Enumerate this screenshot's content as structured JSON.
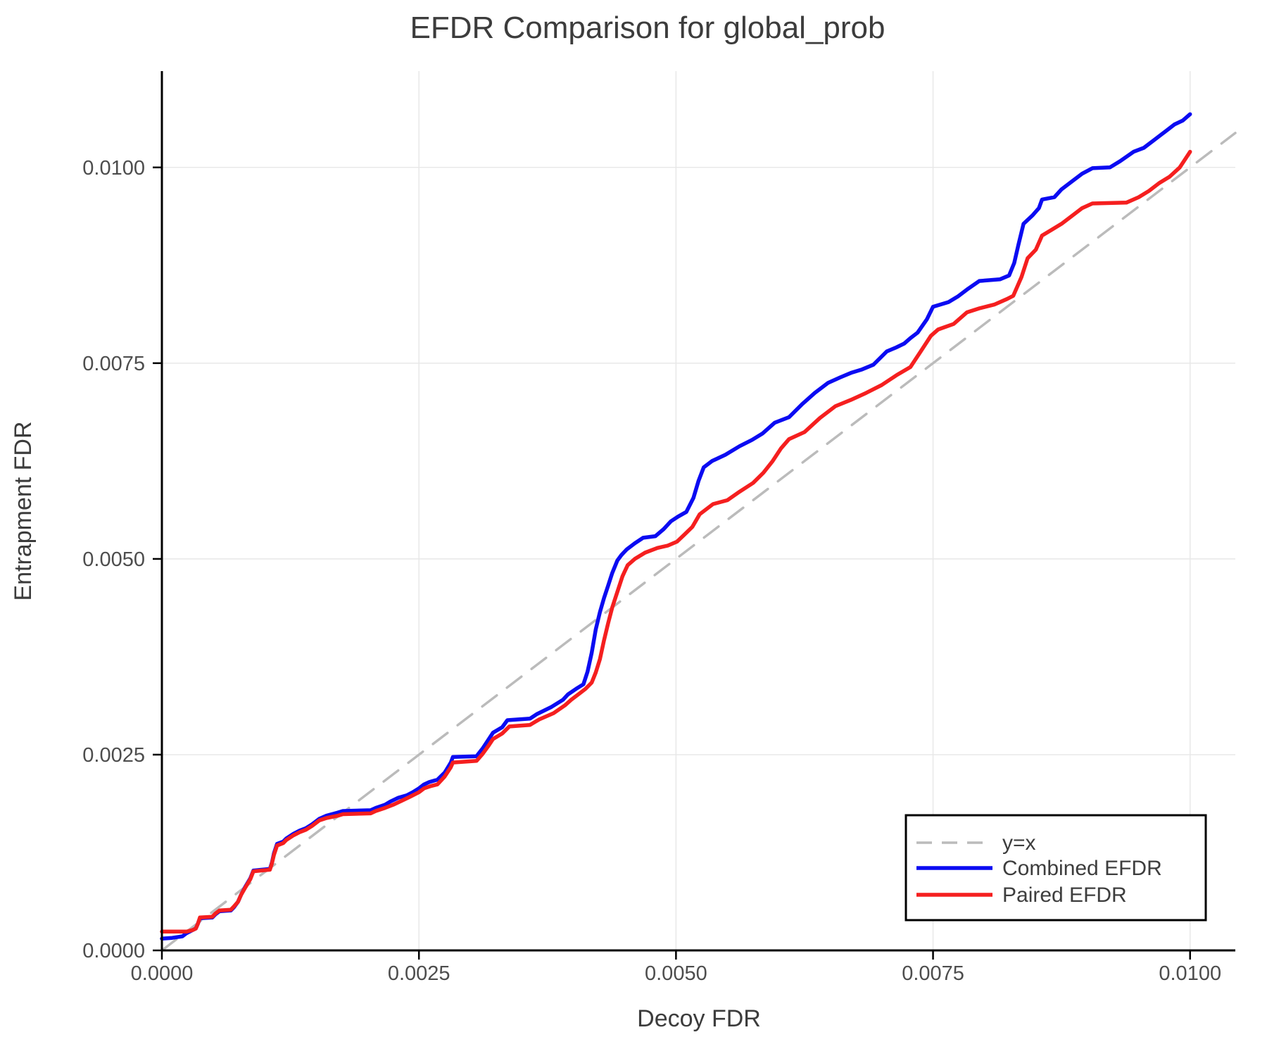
{
  "figure": {
    "title": "EFDR Comparison for global_prob",
    "background_color": "#ffffff"
  },
  "colors": {
    "title": "#3c3c3c",
    "axis_labels": "#3c3c3c",
    "tick_labels": "#4d4d4d",
    "spines": "#000000",
    "grid": "#e8e8e8",
    "legend_border": "#000000",
    "legend_background": "#ffffff",
    "diagonal": "#bbbbbb",
    "combined": "#0b0bf2",
    "paired": "#f51f1f"
  },
  "chart_data": {
    "type": "line",
    "title": "EFDR Comparison for global_prob",
    "xlabel": "Decoy FDR",
    "ylabel": "Entrapment FDR",
    "xlim": [
      0,
      0.01044
    ],
    "ylim": [
      0,
      0.01123
    ],
    "grid": true,
    "legend_position": "bottom-right",
    "x_ticks": [
      0.0,
      0.0025,
      0.005,
      0.0075,
      0.01
    ],
    "x_tick_labels": [
      "0.0000",
      "0.0025",
      "0.0050",
      "0.0075",
      "0.0100"
    ],
    "y_ticks": [
      0.0,
      0.0025,
      0.005,
      0.0075,
      0.01
    ],
    "y_tick_labels": [
      "0.0000",
      "0.0025",
      "0.0050",
      "0.0075",
      "0.0100"
    ],
    "series": [
      {
        "name": "y=x",
        "color": "#bbbbbb",
        "style": "dashed",
        "width": 3.5,
        "points": [
          [
            0,
            0
          ],
          [
            0.01044,
            0.01044
          ]
        ]
      },
      {
        "name": "Combined EFDR",
        "color": "#0b0bf2",
        "style": "solid",
        "width": 5.5,
        "points": [
          [
            0.0,
            0.00015
          ],
          [
            0.0001,
            0.00016
          ],
          [
            0.0002,
            0.00018
          ],
          [
            0.00024,
            0.00022
          ],
          [
            0.0003,
            0.00026
          ],
          [
            0.00033,
            0.00028
          ],
          [
            0.00035,
            0.00034
          ],
          [
            0.00037,
            0.00041
          ],
          [
            0.00049,
            0.00042
          ],
          [
            0.00052,
            0.00046
          ],
          [
            0.00056,
            0.0005
          ],
          [
            0.00067,
            0.00051
          ],
          [
            0.0007,
            0.00055
          ],
          [
            0.00074,
            0.00062
          ],
          [
            0.00077,
            0.00071
          ],
          [
            0.00081,
            0.00081
          ],
          [
            0.00086,
            0.00092
          ],
          [
            0.00089,
            0.00102
          ],
          [
            0.00105,
            0.00104
          ],
          [
            0.00107,
            0.00112
          ],
          [
            0.00109,
            0.00124
          ],
          [
            0.00112,
            0.00136
          ],
          [
            0.00118,
            0.00139
          ],
          [
            0.00121,
            0.00143
          ],
          [
            0.00128,
            0.00149
          ],
          [
            0.00134,
            0.00153
          ],
          [
            0.0014,
            0.00156
          ],
          [
            0.00146,
            0.00161
          ],
          [
            0.00153,
            0.00168
          ],
          [
            0.0016,
            0.00172
          ],
          [
            0.00171,
            0.00176
          ],
          [
            0.00176,
            0.00178
          ],
          [
            0.00203,
            0.00179
          ],
          [
            0.00208,
            0.00182
          ],
          [
            0.00217,
            0.00186
          ],
          [
            0.00222,
            0.0019
          ],
          [
            0.0023,
            0.00195
          ],
          [
            0.00238,
            0.00198
          ],
          [
            0.00244,
            0.00202
          ],
          [
            0.0025,
            0.00207
          ],
          [
            0.00255,
            0.00212
          ],
          [
            0.0026,
            0.00215
          ],
          [
            0.00268,
            0.00218
          ],
          [
            0.00275,
            0.00227
          ],
          [
            0.00281,
            0.0024
          ],
          [
            0.00283,
            0.00247
          ],
          [
            0.00306,
            0.00248
          ],
          [
            0.00312,
            0.00258
          ],
          [
            0.00318,
            0.0027
          ],
          [
            0.00322,
            0.00278
          ],
          [
            0.00331,
            0.00285
          ],
          [
            0.00336,
            0.00294
          ],
          [
            0.00358,
            0.00296
          ],
          [
            0.00365,
            0.00302
          ],
          [
            0.00379,
            0.00311
          ],
          [
            0.0039,
            0.0032
          ],
          [
            0.00395,
            0.00327
          ],
          [
            0.00404,
            0.00335
          ],
          [
            0.0041,
            0.0034
          ],
          [
            0.00414,
            0.00356
          ],
          [
            0.00418,
            0.0038
          ],
          [
            0.00422,
            0.0041
          ],
          [
            0.00426,
            0.00432
          ],
          [
            0.0043,
            0.0045
          ],
          [
            0.00434,
            0.00466
          ],
          [
            0.00438,
            0.00482
          ],
          [
            0.00443,
            0.00498
          ],
          [
            0.00447,
            0.00505
          ],
          [
            0.00452,
            0.00512
          ],
          [
            0.0046,
            0.0052
          ],
          [
            0.00468,
            0.00527
          ],
          [
            0.0048,
            0.00529
          ],
          [
            0.00488,
            0.00538
          ],
          [
            0.00495,
            0.00548
          ],
          [
            0.00502,
            0.00554
          ],
          [
            0.0051,
            0.0056
          ],
          [
            0.00517,
            0.00578
          ],
          [
            0.00522,
            0.006
          ],
          [
            0.00527,
            0.00617
          ],
          [
            0.00535,
            0.00625
          ],
          [
            0.00548,
            0.00633
          ],
          [
            0.00562,
            0.00644
          ],
          [
            0.00574,
            0.00652
          ],
          [
            0.00584,
            0.0066
          ],
          [
            0.00596,
            0.00674
          ],
          [
            0.0061,
            0.00681
          ],
          [
            0.00623,
            0.00698
          ],
          [
            0.00635,
            0.00712
          ],
          [
            0.00648,
            0.00725
          ],
          [
            0.0066,
            0.00732
          ],
          [
            0.00671,
            0.00738
          ],
          [
            0.00681,
            0.00742
          ],
          [
            0.00692,
            0.00748
          ],
          [
            0.00705,
            0.00765
          ],
          [
            0.00714,
            0.0077
          ],
          [
            0.00722,
            0.00775
          ],
          [
            0.00728,
            0.00782
          ],
          [
            0.00735,
            0.00789
          ],
          [
            0.00744,
            0.00806
          ],
          [
            0.0075,
            0.00822
          ],
          [
            0.00765,
            0.00828
          ],
          [
            0.00774,
            0.00835
          ],
          [
            0.00783,
            0.00844
          ],
          [
            0.00795,
            0.00855
          ],
          [
            0.00815,
            0.00857
          ],
          [
            0.00824,
            0.00862
          ],
          [
            0.00829,
            0.00878
          ],
          [
            0.00833,
            0.00901
          ],
          [
            0.00838,
            0.00928
          ],
          [
            0.00847,
            0.00939
          ],
          [
            0.00853,
            0.00948
          ],
          [
            0.00856,
            0.00959
          ],
          [
            0.00868,
            0.00962
          ],
          [
            0.00875,
            0.00972
          ],
          [
            0.00885,
            0.00982
          ],
          [
            0.00895,
            0.00992
          ],
          [
            0.00905,
            0.00999
          ],
          [
            0.00922,
            0.01
          ],
          [
            0.00932,
            0.01008
          ],
          [
            0.00945,
            0.0102
          ],
          [
            0.00955,
            0.01025
          ],
          [
            0.00965,
            0.01035
          ],
          [
            0.00975,
            0.01045
          ],
          [
            0.00985,
            0.01055
          ],
          [
            0.00993,
            0.0106
          ],
          [
            0.01,
            0.01068
          ]
        ]
      },
      {
        "name": "Paired EFDR",
        "color": "#f51f1f",
        "style": "solid",
        "width": 5.5,
        "points": [
          [
            0.0,
            0.00024
          ],
          [
            0.0002,
            0.00024
          ],
          [
            0.00024,
            0.00024
          ],
          [
            0.0003,
            0.00026
          ],
          [
            0.00033,
            0.00028
          ],
          [
            0.00035,
            0.00034
          ],
          [
            0.00037,
            0.00042
          ],
          [
            0.00049,
            0.00043
          ],
          [
            0.00052,
            0.00047
          ],
          [
            0.00056,
            0.00051
          ],
          [
            0.00067,
            0.00052
          ],
          [
            0.0007,
            0.00056
          ],
          [
            0.00074,
            0.00062
          ],
          [
            0.00077,
            0.00071
          ],
          [
            0.00081,
            0.0008
          ],
          [
            0.00086,
            0.00091
          ],
          [
            0.00089,
            0.00101
          ],
          [
            0.00105,
            0.00103
          ],
          [
            0.00107,
            0.00111
          ],
          [
            0.00109,
            0.00122
          ],
          [
            0.00112,
            0.00134
          ],
          [
            0.00118,
            0.00137
          ],
          [
            0.00121,
            0.00141
          ],
          [
            0.00128,
            0.00147
          ],
          [
            0.00134,
            0.00151
          ],
          [
            0.0014,
            0.00154
          ],
          [
            0.00146,
            0.00159
          ],
          [
            0.00153,
            0.00166
          ],
          [
            0.0016,
            0.00169
          ],
          [
            0.00171,
            0.00172
          ],
          [
            0.00176,
            0.00174
          ],
          [
            0.00203,
            0.00175
          ],
          [
            0.00208,
            0.00178
          ],
          [
            0.00217,
            0.00182
          ],
          [
            0.00225,
            0.00186
          ],
          [
            0.00233,
            0.00191
          ],
          [
            0.00241,
            0.00196
          ],
          [
            0.0025,
            0.00202
          ],
          [
            0.00255,
            0.00207
          ],
          [
            0.00262,
            0.0021
          ],
          [
            0.00268,
            0.00212
          ],
          [
            0.00275,
            0.00222
          ],
          [
            0.00281,
            0.00234
          ],
          [
            0.00283,
            0.0024
          ],
          [
            0.00306,
            0.00242
          ],
          [
            0.00312,
            0.00251
          ],
          [
            0.00318,
            0.00262
          ],
          [
            0.00322,
            0.0027
          ],
          [
            0.00331,
            0.00277
          ],
          [
            0.00338,
            0.00286
          ],
          [
            0.00358,
            0.00288
          ],
          [
            0.00367,
            0.00295
          ],
          [
            0.00381,
            0.00303
          ],
          [
            0.00392,
            0.00313
          ],
          [
            0.00398,
            0.0032
          ],
          [
            0.00406,
            0.00328
          ],
          [
            0.00412,
            0.00334
          ],
          [
            0.00418,
            0.00342
          ],
          [
            0.00422,
            0.00355
          ],
          [
            0.00426,
            0.00372
          ],
          [
            0.0043,
            0.00396
          ],
          [
            0.00434,
            0.00418
          ],
          [
            0.00438,
            0.00438
          ],
          [
            0.00443,
            0.00458
          ],
          [
            0.00448,
            0.00478
          ],
          [
            0.00453,
            0.00492
          ],
          [
            0.0046,
            0.005
          ],
          [
            0.0047,
            0.00508
          ],
          [
            0.00482,
            0.00514
          ],
          [
            0.00492,
            0.00517
          ],
          [
            0.00501,
            0.00522
          ],
          [
            0.00509,
            0.00532
          ],
          [
            0.00516,
            0.00541
          ],
          [
            0.00523,
            0.00557
          ],
          [
            0.00536,
            0.0057
          ],
          [
            0.0055,
            0.00575
          ],
          [
            0.00562,
            0.00586
          ],
          [
            0.00575,
            0.00597
          ],
          [
            0.00585,
            0.0061
          ],
          [
            0.00594,
            0.00625
          ],
          [
            0.00602,
            0.00641
          ],
          [
            0.0061,
            0.00653
          ],
          [
            0.00625,
            0.00662
          ],
          [
            0.0064,
            0.0068
          ],
          [
            0.00655,
            0.00695
          ],
          [
            0.0067,
            0.00703
          ],
          [
            0.00685,
            0.00712
          ],
          [
            0.007,
            0.00722
          ],
          [
            0.00715,
            0.00735
          ],
          [
            0.00728,
            0.00745
          ],
          [
            0.00738,
            0.00765
          ],
          [
            0.00748,
            0.00785
          ],
          [
            0.00755,
            0.00793
          ],
          [
            0.0077,
            0.008
          ],
          [
            0.00783,
            0.00815
          ],
          [
            0.00795,
            0.0082
          ],
          [
            0.0081,
            0.00825
          ],
          [
            0.00822,
            0.00832
          ],
          [
            0.00828,
            0.00836
          ],
          [
            0.00836,
            0.0086
          ],
          [
            0.00842,
            0.00884
          ],
          [
            0.0085,
            0.00895
          ],
          [
            0.00856,
            0.00913
          ],
          [
            0.00865,
            0.0092
          ],
          [
            0.00875,
            0.00928
          ],
          [
            0.00885,
            0.00938
          ],
          [
            0.00895,
            0.00948
          ],
          [
            0.00905,
            0.00954
          ],
          [
            0.00938,
            0.00955
          ],
          [
            0.0095,
            0.00962
          ],
          [
            0.0096,
            0.0097
          ],
          [
            0.0097,
            0.0098
          ],
          [
            0.0098,
            0.00988
          ],
          [
            0.0099,
            0.01
          ],
          [
            0.01,
            0.0102
          ]
        ]
      }
    ]
  }
}
